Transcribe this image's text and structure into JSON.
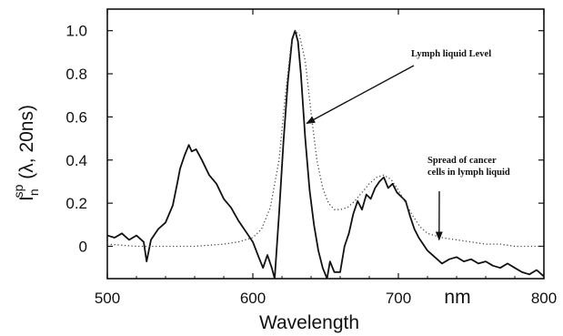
{
  "chart_data": {
    "type": "line",
    "xlabel": "Wavelength",
    "x_unit": "nm",
    "ylabel_main": "I",
    "ylabel_sub": "n",
    "ylabel_sup": "sp",
    "ylabel_rest": " (λ, 20ns)",
    "xlim": [
      500,
      800
    ],
    "ylim": [
      -0.15,
      1.1
    ],
    "x_ticks": [
      500,
      600,
      700,
      800
    ],
    "y_ticks": [
      0,
      0.2,
      0.4,
      0.6,
      0.8,
      1.0
    ],
    "x_tick_labels": [
      "500",
      "600",
      "700",
      "800"
    ],
    "y_tick_labels": [
      "0",
      "0.2",
      "0.4",
      "0.6",
      "0.8",
      "1.0"
    ],
    "grid": false,
    "legend": "none",
    "series": [
      {
        "style": "solid",
        "color": "#111111",
        "x": [
          500,
          505,
          510,
          515,
          520,
          525,
          527,
          530,
          535,
          540,
          545,
          548,
          550,
          553,
          556,
          558,
          561,
          565,
          570,
          575,
          580,
          585,
          590,
          595,
          600,
          604,
          607,
          610,
          613,
          615,
          618,
          621,
          624,
          627,
          629,
          631,
          633,
          636,
          639,
          642,
          645,
          648,
          651,
          653,
          656,
          660,
          663,
          666,
          669,
          672,
          675,
          678,
          681,
          684,
          687,
          690,
          693,
          696,
          699,
          702,
          705,
          708,
          711,
          714,
          717,
          720,
          725,
          730,
          735,
          740,
          745,
          750,
          755,
          760,
          765,
          770,
          775,
          780,
          785,
          790,
          795,
          800
        ],
        "y": [
          0.05,
          0.04,
          0.06,
          0.03,
          0.05,
          0.02,
          -0.07,
          0.03,
          0.08,
          0.11,
          0.19,
          0.29,
          0.36,
          0.42,
          0.47,
          0.44,
          0.45,
          0.4,
          0.33,
          0.29,
          0.22,
          0.18,
          0.12,
          0.07,
          0.02,
          -0.05,
          -0.1,
          -0.04,
          -0.1,
          -0.15,
          0.15,
          0.48,
          0.76,
          0.96,
          1.0,
          0.95,
          0.8,
          0.5,
          0.26,
          0.1,
          -0.02,
          -0.1,
          -0.15,
          -0.07,
          -0.12,
          -0.12,
          0.0,
          0.06,
          0.15,
          0.21,
          0.17,
          0.24,
          0.22,
          0.27,
          0.3,
          0.32,
          0.27,
          0.29,
          0.25,
          0.23,
          0.21,
          0.14,
          0.08,
          0.04,
          0.01,
          -0.02,
          -0.05,
          -0.08,
          -0.06,
          -0.05,
          -0.07,
          -0.06,
          -0.08,
          -0.07,
          -0.09,
          -0.1,
          -0.08,
          -0.1,
          -0.12,
          -0.13,
          -0.11,
          -0.14
        ]
      },
      {
        "style": "dotted",
        "color": "#444444",
        "x": [
          500,
          520,
          540,
          560,
          580,
          590,
          600,
          606,
          612,
          618,
          622,
          626,
          629,
          632,
          636,
          640,
          644,
          648,
          652,
          656,
          660,
          665,
          670,
          675,
          680,
          685,
          690,
          695,
          700,
          705,
          710,
          715,
          720,
          730,
          740,
          750,
          760,
          770,
          780,
          790,
          800
        ],
        "y": [
          0.01,
          0.0,
          0.0,
          0.0,
          0.01,
          0.02,
          0.04,
          0.08,
          0.18,
          0.4,
          0.68,
          0.92,
          1.0,
          0.98,
          0.86,
          0.62,
          0.4,
          0.27,
          0.2,
          0.17,
          0.17,
          0.18,
          0.21,
          0.25,
          0.29,
          0.32,
          0.33,
          0.31,
          0.26,
          0.2,
          0.14,
          0.09,
          0.06,
          0.04,
          0.03,
          0.02,
          0.01,
          0.01,
          0.0,
          0.0,
          0.0
        ]
      }
    ],
    "annotations": [
      {
        "lines": [
          "Lymph  liquid Level"
        ],
        "target_x": 637,
        "target_y": 0.57
      },
      {
        "lines": [
          "Spread of cancer",
          "cells in lymph liquid"
        ],
        "target_x": 728,
        "target_y": 0.03
      }
    ]
  }
}
